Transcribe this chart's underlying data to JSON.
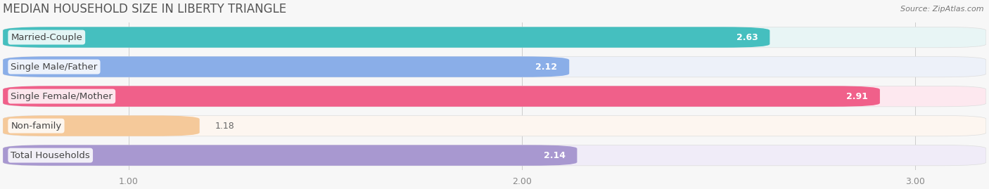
{
  "title": "MEDIAN HOUSEHOLD SIZE IN LIBERTY TRIANGLE",
  "source": "Source: ZipAtlas.com",
  "categories": [
    "Married-Couple",
    "Single Male/Father",
    "Single Female/Mother",
    "Non-family",
    "Total Households"
  ],
  "values": [
    2.63,
    2.12,
    2.91,
    1.18,
    2.14
  ],
  "bar_colors": [
    "#45bfbf",
    "#8aaee8",
    "#f0608a",
    "#f5c99a",
    "#a898d0"
  ],
  "bar_bg_colors": [
    "#e8f5f5",
    "#edf1f9",
    "#fde8ef",
    "#fdf6f0",
    "#f0ecf8"
  ],
  "xlim_min": 0.68,
  "xlim_max": 3.18,
  "xticks": [
    1.0,
    2.0,
    3.0
  ],
  "title_fontsize": 12,
  "label_fontsize": 9.5,
  "value_fontsize": 9,
  "background_color": "#f7f7f7",
  "bar_area_bg": "#f0f0f0"
}
